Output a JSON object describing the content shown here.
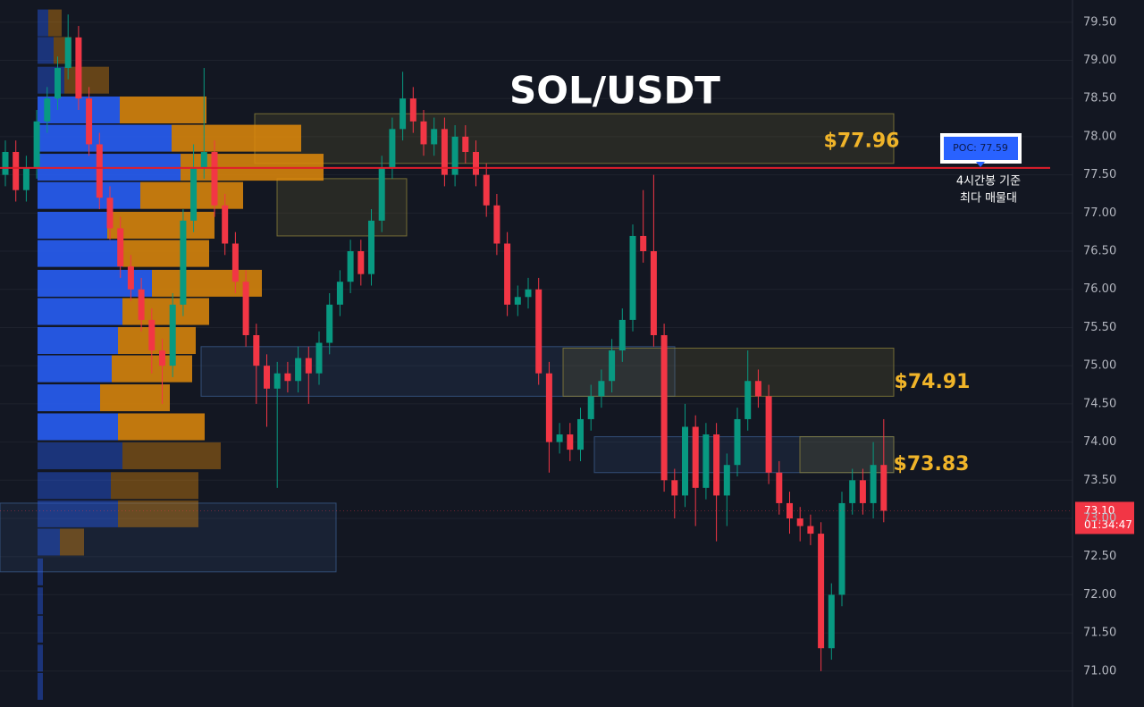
{
  "chart_data": {
    "type": "candlestick",
    "title": "SOL/USDT",
    "ylim": [
      70.53,
      79.79
    ],
    "yticks": [
      {
        "value": 71.0,
        "label": "71.00"
      },
      {
        "value": 71.5,
        "label": "71.50"
      },
      {
        "value": 72.0,
        "label": "72.00"
      },
      {
        "value": 72.5,
        "label": "72.50"
      },
      {
        "value": 73.0,
        "label": "73.00"
      },
      {
        "value": 73.5,
        "label": "73.50"
      },
      {
        "value": 74.0,
        "label": "74.00"
      },
      {
        "value": 74.5,
        "label": "74.50"
      },
      {
        "value": 75.0,
        "label": "75.00"
      },
      {
        "value": 75.5,
        "label": "75.50"
      },
      {
        "value": 76.0,
        "label": "76.00"
      },
      {
        "value": 76.5,
        "label": "76.50"
      },
      {
        "value": 77.0,
        "label": "77.00"
      },
      {
        "value": 77.5,
        "label": "77.50"
      },
      {
        "value": 78.0,
        "label": "78.00"
      },
      {
        "value": 78.5,
        "label": "78.50"
      },
      {
        "value": 79.0,
        "label": "79.00"
      },
      {
        "value": 79.5,
        "label": "79.50"
      }
    ],
    "grid": true,
    "up_color": "#089981",
    "down_color": "#f23645",
    "open": [
      77.5,
      77.8,
      77.3,
      77.6,
      78.2,
      78.5,
      78.9,
      79.3,
      78.5,
      77.9,
      77.2,
      76.8,
      76.3,
      76.0,
      75.6,
      75.2,
      75.0,
      75.8,
      76.9,
      77.6,
      77.8,
      77.1,
      76.6,
      76.1,
      75.4,
      75.0,
      74.7,
      74.9,
      74.8,
      75.1,
      74.9,
      75.3,
      75.8,
      76.1,
      76.5,
      76.2,
      76.9,
      77.6,
      78.1,
      78.5,
      78.2,
      77.9,
      78.1,
      77.5,
      78.0,
      77.8,
      77.5,
      77.1,
      76.6,
      75.8,
      75.9,
      76.0,
      74.9,
      74.0,
      74.1,
      73.9,
      74.3,
      74.6,
      74.8,
      75.2,
      75.6,
      76.7,
      76.5,
      75.4,
      73.5,
      73.3,
      74.2,
      73.4,
      74.1,
      73.3,
      73.7,
      74.3,
      74.8,
      74.6,
      73.6,
      73.2,
      73.0,
      72.9,
      72.8,
      71.3,
      72.0,
      73.2,
      73.5,
      73.2,
      73.7
    ],
    "high": [
      77.95,
      77.95,
      77.75,
      78.35,
      78.65,
      79.05,
      79.6,
      79.45,
      78.65,
      78.05,
      77.35,
      76.95,
      76.45,
      76.15,
      75.75,
      75.35,
      75.95,
      77.05,
      77.9,
      78.9,
      77.95,
      77.25,
      76.75,
      76.25,
      75.55,
      75.15,
      75.05,
      75.05,
      75.25,
      75.25,
      75.45,
      75.95,
      76.25,
      76.65,
      76.65,
      77.05,
      77.75,
      78.25,
      78.85,
      78.65,
      78.35,
      78.25,
      78.25,
      78.15,
      78.15,
      77.95,
      77.65,
      77.25,
      76.75,
      76.05,
      76.15,
      76.15,
      75.05,
      74.25,
      74.25,
      74.45,
      74.75,
      74.95,
      75.35,
      75.75,
      76.85,
      77.3,
      77.5,
      75.55,
      73.65,
      74.5,
      74.35,
      74.25,
      74.25,
      73.85,
      74.45,
      75.2,
      74.95,
      74.75,
      73.75,
      73.35,
      73.15,
      73.05,
      72.95,
      72.15,
      73.35,
      73.65,
      73.65,
      74.0,
      74.3
    ],
    "low": [
      77.35,
      77.15,
      77.15,
      77.45,
      78.05,
      78.35,
      78.75,
      78.35,
      77.75,
      77.05,
      76.65,
      76.15,
      75.85,
      75.45,
      74.9,
      74.5,
      74.85,
      75.65,
      76.75,
      77.45,
      76.95,
      76.45,
      75.95,
      75.25,
      74.5,
      74.2,
      73.4,
      74.65,
      74.65,
      74.5,
      74.75,
      75.15,
      75.65,
      75.95,
      76.05,
      76.05,
      76.75,
      77.45,
      77.95,
      78.05,
      77.75,
      77.75,
      77.35,
      77.35,
      77.65,
      77.35,
      76.95,
      76.45,
      75.65,
      75.65,
      75.75,
      74.75,
      73.6,
      73.85,
      73.75,
      73.75,
      74.15,
      74.45,
      74.65,
      75.05,
      75.45,
      76.35,
      75.25,
      73.35,
      73.0,
      73.15,
      72.9,
      73.25,
      72.7,
      72.9,
      73.55,
      74.15,
      74.45,
      73.45,
      73.05,
      72.8,
      72.7,
      72.65,
      71.0,
      71.15,
      71.85,
      73.05,
      73.05,
      73.0,
      72.95
    ],
    "close": [
      77.8,
      77.3,
      77.6,
      78.2,
      78.5,
      78.9,
      79.3,
      78.5,
      77.9,
      77.2,
      76.8,
      76.3,
      76.0,
      75.6,
      75.2,
      75.0,
      75.8,
      76.9,
      77.6,
      77.8,
      77.1,
      76.6,
      76.1,
      75.4,
      75.0,
      74.7,
      74.9,
      74.8,
      75.1,
      74.9,
      75.3,
      75.8,
      76.1,
      76.5,
      76.2,
      76.9,
      77.6,
      78.1,
      78.5,
      78.2,
      77.9,
      78.1,
      77.5,
      78.0,
      77.8,
      77.5,
      77.1,
      76.6,
      75.8,
      75.9,
      76.0,
      74.9,
      74.0,
      74.1,
      73.9,
      74.3,
      74.6,
      74.8,
      75.2,
      75.6,
      76.7,
      76.5,
      75.4,
      73.5,
      73.3,
      74.2,
      73.4,
      74.1,
      73.3,
      73.7,
      74.3,
      74.8,
      74.6,
      73.6,
      73.2,
      73.0,
      72.9,
      72.8,
      71.3,
      72.0,
      73.2,
      73.5,
      73.2,
      73.7,
      73.1
    ],
    "volume_profile": {
      "price": [
        79.49,
        79.13,
        78.74,
        78.35,
        77.98,
        77.6,
        77.23,
        76.84,
        76.47,
        76.08,
        75.71,
        75.33,
        74.96,
        74.58,
        74.2,
        73.82,
        73.43,
        73.06,
        72.69,
        72.3,
        71.92,
        71.55,
        71.17,
        70.8
      ],
      "buy": [
        12,
        18,
        30,
        92,
        150,
        160,
        115,
        78,
        95,
        128,
        95,
        90,
        83,
        70,
        90,
        95,
        82,
        90,
        25,
        6,
        6,
        6,
        6,
        6
      ],
      "sell": [
        15,
        20,
        50,
        97,
        145,
        160,
        115,
        120,
        97,
        123,
        97,
        87,
        90,
        78,
        97,
        110,
        98,
        90,
        27,
        0,
        0,
        0,
        0,
        0
      ],
      "value_area": [
        74.0,
        78.55
      ],
      "buy_color": "#2962ff",
      "sell_color": "#e08a0b"
    },
    "zones": [
      {
        "low": 77.65,
        "high": 78.3,
        "color": "#8a7f3a"
      },
      {
        "low": 76.7,
        "high": 77.45,
        "color": "#8a7f3a"
      },
      {
        "low": 74.6,
        "high": 75.25,
        "color": "#3a5a8a"
      },
      {
        "low": 74.6,
        "high": 75.23,
        "color": "#8a7f3a"
      },
      {
        "low": 73.6,
        "high": 74.07,
        "color": "#3a5a8a"
      },
      {
        "low": 73.6,
        "high": 74.07,
        "color": "#8a7f3a"
      },
      {
        "low": 72.3,
        "high": 73.2,
        "color": "#3a5a8a"
      }
    ],
    "zone_labels": [
      {
        "value": 77.96,
        "label": "$77.96"
      },
      {
        "value": 74.91,
        "label": "$74.91"
      },
      {
        "value": 73.83,
        "label": "$73.83"
      }
    ],
    "poc": {
      "value": 77.59,
      "label": "POC: 77.59"
    },
    "poc_note": [
      "4시간봉 기준",
      "최다 매물대"
    ],
    "last_price": {
      "value": 73.1,
      "label": "73.10"
    },
    "countdown": "01:34:47"
  }
}
